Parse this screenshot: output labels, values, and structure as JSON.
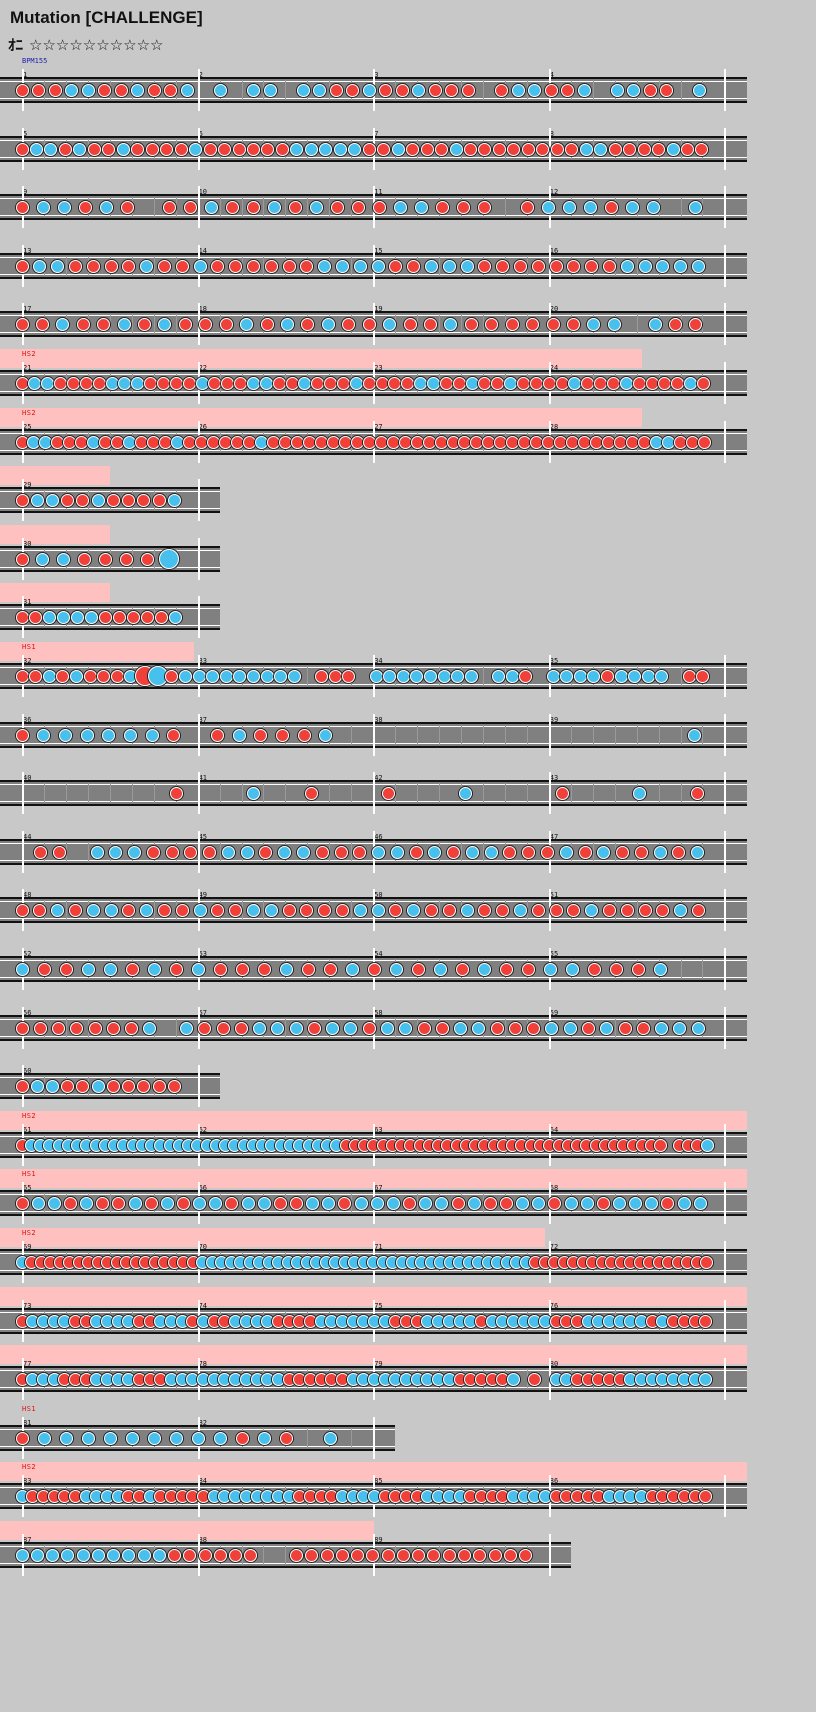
{
  "song": {
    "title": "Mutation [CHALLENGE]",
    "difficulty_mark": "ｵﾆ",
    "stars": "☆☆☆☆☆☆☆☆☆☆",
    "bpm_label": "BPM155"
  },
  "colors": {
    "don": "#f0403a",
    "ka": "#48c0ee",
    "track": "#808080",
    "hs_band": "#ffc0c0",
    "background": "#c8c8c8"
  },
  "rows": [
    {
      "measures": [
        "1",
        "2",
        "3",
        "4"
      ],
      "marker": "BPM155",
      "notes": "dddkkddkddk_k_kk_kkddkddkddd_dkkddk_kkdd_k"
    },
    {
      "measures": [
        "5",
        "6",
        "7",
        "8"
      ],
      "marker": "",
      "notes": "dkkdkddkddddkddddddkkkkkddkdddkddddddddkkddddkdd"
    },
    {
      "measures": [
        "9",
        "10",
        "11",
        "12"
      ],
      "marker": "",
      "notes": "dkkdkd_ddkddkdkdddkkddd_dkkkdkk_k"
    },
    {
      "measures": [
        "13",
        "14",
        "15",
        "16"
      ],
      "marker": "",
      "notes": "dkkddddkddkddddddkkkkddkkkddddddddkkkkk"
    },
    {
      "measures": [
        "17",
        "18",
        "19",
        "20"
      ],
      "marker": "",
      "notes": "ddkddkdkdddkdkdkddkddkddddddkk_kdd"
    },
    {
      "measures": [
        "21",
        "22",
        "23",
        "24"
      ],
      "marker": "HS2",
      "notes": "dkkddddkkkddddkdddkkddkdddkddddkkddkddkddddkdddkddddkd",
      "hs_span": 0.86
    },
    {
      "measures": [
        "25",
        "26",
        "27",
        "28"
      ],
      "marker": "HS2",
      "notes": "dkkdddkddkdddkddddddkddddddddddddddddddddddddddddddddkkddd",
      "hs_span": 0.86
    },
    {
      "measures": [
        "29"
      ],
      "marker": "",
      "notes": "dkkddkddddk",
      "short": true,
      "hs_span": 0.15
    },
    {
      "measures": [
        "30"
      ],
      "marker": "",
      "notes": "dkkddddK",
      "short": true,
      "hs_span": 0.15
    },
    {
      "measures": [
        "31"
      ],
      "marker": "",
      "notes": "ddkkkkdddddk",
      "short": true,
      "hs_span": 0.15
    },
    {
      "measures": [
        "32",
        "33",
        "34",
        "35"
      ],
      "marker": "HS1",
      "notes": "ddkdkdddkDKdkkkkkkkkk_ddd_kkkkkkkk_kkd_kkkkdkkkk_dd",
      "hs_span": 0.26
    },
    {
      "measures": [
        "36",
        "37",
        "38",
        "39"
      ],
      "marker": "",
      "notes": "dkkkkkkd_dkdddk________________k"
    },
    {
      "measures": [
        "40",
        "41",
        "42",
        "43"
      ],
      "marker": "",
      "notes": "________d___k__d___d___k____d___k__d"
    },
    {
      "measures": [
        "44",
        "45",
        "46",
        "47"
      ],
      "marker": "",
      "notes": "_dd_kkkddddkkdkkdddkkdkdkkdddkdkddkdk"
    },
    {
      "measures": [
        "48",
        "49",
        "50",
        "51"
      ],
      "marker": "",
      "notes": "ddkdkkdkddkddkkddddkkdkddkddkdddkddddkd"
    },
    {
      "measures": [
        "52",
        "53",
        "54",
        "55"
      ],
      "marker": "",
      "notes": "kddkkdkdkdddkddkdkdkdkddkkdddk"
    },
    {
      "measures": [
        "56",
        "57",
        "58",
        "59"
      ],
      "marker": "",
      "notes": "dddddddk_kdddkkkdkkdkkddkkdddkkdkddkkk"
    },
    {
      "measures": [
        "60"
      ],
      "marker": "",
      "notes": "dkkddkddddd",
      "short": true
    },
    {
      "measures": [
        "61",
        "62",
        "63",
        "64"
      ],
      "marker": "HS2",
      "notes": "dkkkkkkkkkkkkkkkkkkkkkkkkkkkkkkkkkkddddddddddddddddddddddddddddddddddd_dddk",
      "hs_span": 1.0
    },
    {
      "measures": [
        "65",
        "66",
        "67",
        "68"
      ],
      "marker": "HS1",
      "notes": "dkkdkddkdkdkkdkkddkkdkkkdkkdkddkkdkkdkkkdkk",
      "hs_span": 1.0
    },
    {
      "measures": [
        "69",
        "70",
        "71",
        "72"
      ],
      "marker": "HS2",
      "notes": "kddddddddddddddddddkkkkkkkkkkkkkkkkkkkkkkkkkkkkkkkkkkkddddddddddddddddddd",
      "hs_span": 0.73
    },
    {
      "measures": [
        "73",
        "74",
        "75",
        "76"
      ],
      "marker": "",
      "notes": "dkkkkddkkkkddkkkdkddkkkkddddkkkkkkkdddkkkkkdkkkkkkdddkkkkkkdkdddd",
      "hs_span": 1.0
    },
    {
      "measures": [
        "77",
        "78",
        "79",
        "80"
      ],
      "marker": "",
      "notes": "dkkkdddkkkkdddkkkkkkkkkkkddddddkkkkkkkkkkdddddk_d_kkdddddkkkkkkkk",
      "hs_span": 1.0
    },
    {
      "measures": [
        "81",
        "82"
      ],
      "marker": "HS1",
      "notes": "dkkkkkkkkkdkd_k",
      "medium": true
    },
    {
      "measures": [
        "83",
        "84",
        "85",
        "86"
      ],
      "marker": "HS2",
      "notes": "kdddddkkkkddkdddddkkkkkkkkddddkkkkddddkkkkddddkkkkdddddkkkkdddddd",
      "hs_span": 1.0
    },
    {
      "measures": [
        "87",
        "88",
        "89"
      ],
      "marker": "",
      "notes": "kkkkkkkkkkdddddd__dddddddddddddddd",
      "tail": true,
      "hs_span": 0.5
    }
  ]
}
